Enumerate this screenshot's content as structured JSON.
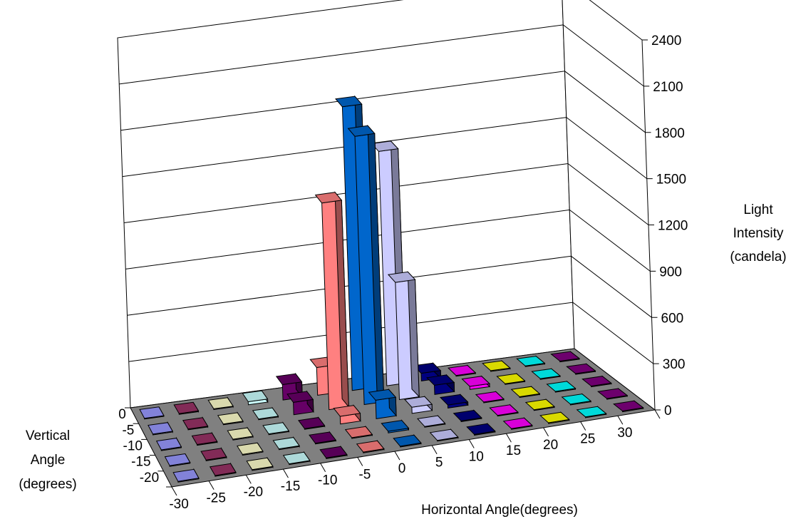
{
  "chart_data": {
    "type": "bar3d",
    "z_axis": {
      "title_lines": [
        "Light",
        "Intensity",
        "(candela)"
      ],
      "ticks": [
        0,
        300,
        600,
        900,
        1200,
        1500,
        1800,
        2100,
        2400
      ],
      "range": [
        0,
        2400
      ]
    },
    "x_axis": {
      "title": "Horizontal Angle(degrees)",
      "categories": [
        "-30",
        "-25",
        "-20",
        "-15",
        "-10",
        "-5",
        "0",
        "5",
        "10",
        "15",
        "20",
        "25",
        "30"
      ]
    },
    "y_axis": {
      "title_lines": [
        "Vertical",
        "Angle",
        "(degrees)"
      ],
      "categories": [
        "0",
        "-5",
        "-10",
        "-15",
        "-20"
      ]
    },
    "column_colors": [
      "#9999ff",
      "#993366",
      "#ffffcc",
      "#ccffff",
      "#660066",
      "#ff8080",
      "#0066cc",
      "#ccccff",
      "#000080",
      "#ff00ff",
      "#ffff00",
      "#00ffff",
      "#800080"
    ],
    "floor_color": "#808080",
    "values_by_row": [
      [
        5,
        5,
        5,
        20,
        100,
        180,
        1840,
        1520,
        50,
        5,
        5,
        5,
        5
      ],
      [
        5,
        5,
        5,
        5,
        80,
        1340,
        1740,
        760,
        60,
        20,
        5,
        5,
        5
      ],
      [
        5,
        5,
        5,
        5,
        5,
        50,
        120,
        40,
        20,
        5,
        5,
        5,
        5
      ],
      [
        5,
        5,
        5,
        5,
        5,
        5,
        10,
        5,
        5,
        5,
        5,
        5,
        5
      ],
      [
        5,
        5,
        5,
        5,
        5,
        5,
        5,
        5,
        5,
        5,
        5,
        5,
        5
      ]
    ]
  }
}
